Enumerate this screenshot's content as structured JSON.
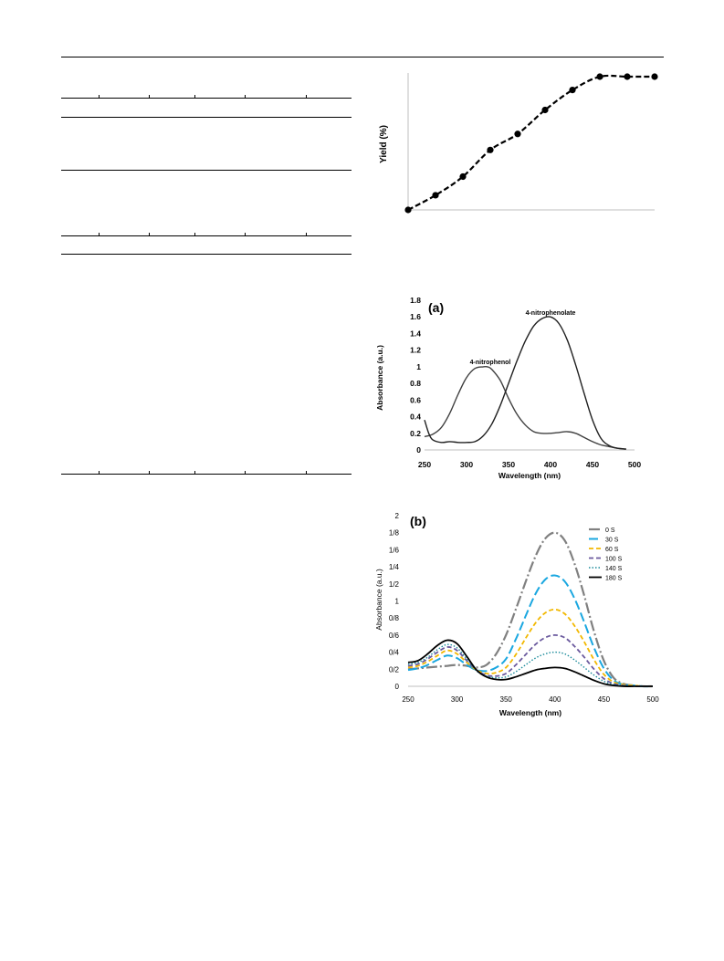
{
  "yield_chart": {
    "ylabel": "Yield (%)",
    "chart_data": {
      "type": "line",
      "ylabel": "Yield (%)",
      "xlabel": "",
      "line_style": "dashed",
      "marker": "circle",
      "grid": false,
      "x": [
        0,
        1,
        2,
        3,
        4,
        5,
        6,
        7,
        8,
        9
      ],
      "y": [
        0,
        11,
        25,
        45,
        57,
        75,
        90,
        100,
        100,
        100
      ]
    }
  },
  "chart_a": {
    "panel_label": "(a)",
    "xlabel": "Wavelength (nm)",
    "ylabel": "Absorbance (a.u.)",
    "annotation_1": "4-nitrophenol",
    "annotation_2": "4-nitrophenolate",
    "x_ticks": [
      "250",
      "300",
      "350",
      "400",
      "450",
      "500"
    ],
    "y_ticks": [
      "0",
      "0.2",
      "0.4",
      "0.6",
      "0.8",
      "1",
      "1.2",
      "1.4",
      "1.6",
      "1.8"
    ],
    "chart_data": {
      "type": "line",
      "xlabel": "Wavelength (nm)",
      "ylabel": "Absorbance (a.u.)",
      "xlim": [
        250,
        500
      ],
      "ylim": [
        0,
        1.8
      ],
      "grid": false,
      "series": [
        {
          "x": [
            250,
            260,
            270,
            280,
            290,
            300,
            310,
            320,
            325,
            330,
            340,
            350,
            360,
            370,
            380,
            390,
            400,
            410,
            420,
            430,
            440,
            450,
            460,
            470,
            480,
            490
          ],
          "y": [
            0.16,
            0.19,
            0.27,
            0.44,
            0.67,
            0.87,
            0.98,
            1.0,
            1.0,
            0.97,
            0.84,
            0.62,
            0.43,
            0.3,
            0.22,
            0.2,
            0.2,
            0.21,
            0.22,
            0.2,
            0.15,
            0.1,
            0.06,
            0.04,
            0.02,
            0.01
          ]
        },
        {
          "x": [
            250,
            255,
            260,
            270,
            280,
            290,
            300,
            310,
            320,
            330,
            340,
            350,
            360,
            370,
            380,
            390,
            400,
            410,
            420,
            430,
            440,
            450,
            460,
            470,
            480,
            490
          ],
          "y": [
            0.36,
            0.2,
            0.12,
            0.09,
            0.1,
            0.09,
            0.09,
            0.1,
            0.17,
            0.31,
            0.53,
            0.8,
            1.07,
            1.31,
            1.49,
            1.58,
            1.6,
            1.52,
            1.32,
            1.02,
            0.68,
            0.36,
            0.14,
            0.05,
            0.02,
            0.01
          ]
        }
      ],
      "annotations": [
        "4-nitrophenol",
        "4-nitrophenolate"
      ]
    }
  },
  "chart_b": {
    "panel_label": "(b)",
    "xlabel": "Wavelength (nm)",
    "ylabel": "Absorbance (a.u.)",
    "x_ticks": [
      "250",
      "300",
      "350",
      "400",
      "450",
      "500"
    ],
    "y_ticks": [
      "0",
      "0/2",
      "0/4",
      "0/6",
      "0/8",
      "1",
      "1/2",
      "1/4",
      "1/6",
      "1/8",
      "2"
    ],
    "legend_position": "top-right",
    "chart_data": {
      "type": "line",
      "xlabel": "Wavelength (nm)",
      "ylabel": "Absorbance (a.u.)",
      "xlim": [
        250,
        500
      ],
      "ylim": [
        0,
        2
      ],
      "grid": false,
      "legend": "top-right",
      "x": [
        250,
        260,
        270,
        280,
        290,
        300,
        310,
        320,
        330,
        340,
        350,
        360,
        370,
        380,
        390,
        400,
        410,
        420,
        430,
        440,
        450,
        460,
        470,
        480,
        490,
        500
      ],
      "series": [
        {
          "name": "0 S",
          "color": "#808080",
          "dash": "dashdot",
          "peak_uv": 0.25,
          "peak_vis": 1.8,
          "y": [
            0.2,
            0.21,
            0.22,
            0.23,
            0.24,
            0.25,
            0.24,
            0.22,
            0.25,
            0.38,
            0.6,
            0.9,
            1.22,
            1.52,
            1.73,
            1.8,
            1.71,
            1.44,
            1.06,
            0.64,
            0.3,
            0.1,
            0.03,
            0.01,
            0.0,
            0.0
          ]
        },
        {
          "name": "30 S",
          "color": "#1AA7E0",
          "dash": "longdash",
          "peak_uv": 0.36,
          "peak_vis": 1.3,
          "y": [
            0.19,
            0.21,
            0.25,
            0.31,
            0.36,
            0.33,
            0.25,
            0.19,
            0.18,
            0.22,
            0.32,
            0.55,
            0.82,
            1.08,
            1.25,
            1.3,
            1.23,
            1.03,
            0.75,
            0.45,
            0.21,
            0.07,
            0.02,
            0.01,
            0.0,
            0.0
          ]
        },
        {
          "name": "60 S",
          "color": "#F2B800",
          "dash": "dashed",
          "peak_uv": 0.42,
          "peak_vis": 0.9,
          "y": [
            0.22,
            0.24,
            0.29,
            0.36,
            0.42,
            0.38,
            0.28,
            0.19,
            0.15,
            0.16,
            0.22,
            0.37,
            0.56,
            0.74,
            0.86,
            0.9,
            0.85,
            0.71,
            0.52,
            0.31,
            0.14,
            0.05,
            0.02,
            0.01,
            0.0,
            0.0
          ]
        },
        {
          "name": "100 S",
          "color": "#6B5A9E",
          "dash": "dashed",
          "peak_uv": 0.46,
          "peak_vis": 0.6,
          "y": [
            0.24,
            0.26,
            0.32,
            0.4,
            0.46,
            0.42,
            0.3,
            0.19,
            0.13,
            0.12,
            0.15,
            0.25,
            0.37,
            0.49,
            0.57,
            0.6,
            0.57,
            0.47,
            0.34,
            0.2,
            0.09,
            0.03,
            0.01,
            0.0,
            0.0,
            0.0
          ]
        },
        {
          "name": "140 S",
          "color": "#1A8A9A",
          "dash": "dotted",
          "peak_uv": 0.49,
          "peak_vis": 0.4,
          "y": [
            0.26,
            0.28,
            0.34,
            0.43,
            0.49,
            0.45,
            0.32,
            0.18,
            0.12,
            0.1,
            0.11,
            0.17,
            0.25,
            0.33,
            0.38,
            0.4,
            0.38,
            0.31,
            0.22,
            0.13,
            0.06,
            0.02,
            0.01,
            0.0,
            0.0,
            0.0
          ]
        },
        {
          "name": "180 S",
          "color": "#000000",
          "dash": "solid",
          "peak_uv": 0.54,
          "peak_vis": 0.22,
          "y": [
            0.28,
            0.3,
            0.38,
            0.48,
            0.54,
            0.5,
            0.35,
            0.19,
            0.11,
            0.08,
            0.08,
            0.11,
            0.15,
            0.19,
            0.21,
            0.22,
            0.21,
            0.17,
            0.12,
            0.07,
            0.03,
            0.01,
            0.0,
            0.0,
            0.0,
            0.0
          ]
        }
      ]
    }
  }
}
